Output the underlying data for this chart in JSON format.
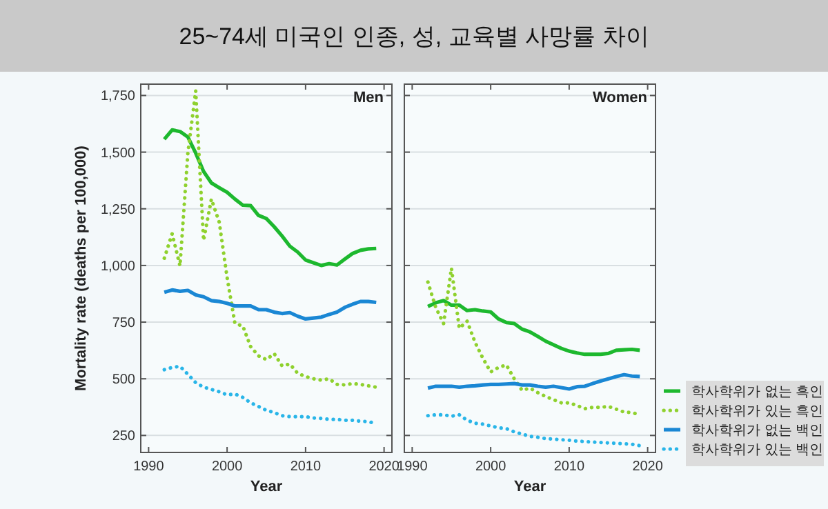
{
  "chart_data": [
    {
      "type": "line",
      "title": "25~74세 미국인 인종, 성, 교육별 사망률 차이",
      "subtitle": "Men",
      "xlabel": "Year",
      "ylabel": "Mortality rate (deaths per 100,000)",
      "xlim": [
        1989,
        2021
      ],
      "ylim": [
        175,
        1800
      ],
      "xticks": [
        1990,
        2000,
        2010,
        2020
      ],
      "yticks": [
        {
          "value": 250,
          "label": "250"
        },
        {
          "value": 500,
          "label": "500"
        },
        {
          "value": 750,
          "label": "750"
        },
        {
          "value": 1000,
          "label": "1,000"
        },
        {
          "value": 1250,
          "label": "1,250"
        },
        {
          "value": 1500,
          "label": "1,500"
        },
        {
          "value": 1750,
          "label": "1,750"
        }
      ],
      "grid": "y",
      "x": [
        1992,
        1993,
        1994,
        1995,
        1996,
        1997,
        1998,
        1999,
        2000,
        2001,
        2002,
        2003,
        2004,
        2005,
        2006,
        2007,
        2008,
        2009,
        2010,
        2011,
        2012,
        2013,
        2014,
        2015,
        2016,
        2017,
        2018,
        2019
      ],
      "series": [
        {
          "color": "#1db82e",
          "line_style": "solid",
          "values": [
            1557,
            1598,
            1591,
            1567,
            1496,
            1415,
            1364,
            1343,
            1323,
            1293,
            1266,
            1264,
            1221,
            1207,
            1171,
            1130,
            1085,
            1059,
            1024,
            1012,
            1000,
            1008,
            1002,
            1028,
            1053,
            1067,
            1073,
            1075
          ]
        },
        {
          "color": "#8fd12e",
          "line_style": "dotted",
          "values": [
            1032,
            1140,
            998,
            1496,
            1770,
            1110,
            1293,
            1191,
            947,
            744,
            733,
            642,
            601,
            585,
            611,
            557,
            565,
            524,
            510,
            500,
            494,
            500,
            475,
            473,
            479,
            475,
            469,
            463
          ]
        },
        {
          "color": "#1a87d4",
          "line_style": "solid",
          "values": [
            882,
            892,
            886,
            890,
            870,
            862,
            845,
            841,
            833,
            821,
            821,
            821,
            805,
            805,
            794,
            788,
            792,
            776,
            764,
            768,
            772,
            784,
            794,
            815,
            829,
            841,
            841,
            837
          ]
        },
        {
          "color": "#29b5e8",
          "line_style": "dotted",
          "values": [
            540,
            550,
            555,
            520,
            483,
            463,
            453,
            443,
            429,
            433,
            418,
            394,
            378,
            361,
            351,
            337,
            333,
            333,
            333,
            327,
            325,
            321,
            321,
            317,
            317,
            313,
            311,
            302
          ]
        }
      ]
    },
    {
      "type": "line",
      "subtitle": "Women",
      "xlabel": "Year",
      "xlim": [
        1989,
        2021
      ],
      "ylim": [
        175,
        1800
      ],
      "xticks": [
        1990,
        2000,
        2010,
        2020
      ],
      "yticks": [
        250,
        500,
        750,
        1000,
        1250,
        1500,
        1750
      ],
      "grid": "y",
      "tick_labels": "x",
      "legend": "right",
      "x": [
        1992,
        1993,
        1994,
        1995,
        1996,
        1997,
        1998,
        1999,
        2000,
        2001,
        2002,
        2003,
        2004,
        2005,
        2006,
        2007,
        2008,
        2009,
        2010,
        2011,
        2012,
        2013,
        2014,
        2015,
        2016,
        2017,
        2018,
        2019
      ],
      "series": [
        {
          "name": "학사학위가 없는 흑인",
          "color": "#1db82e",
          "line_style": "solid",
          "values": [
            819,
            835,
            845,
            825,
            825,
            801,
            805,
            799,
            795,
            764,
            748,
            744,
            719,
            707,
            687,
            666,
            650,
            634,
            622,
            614,
            608,
            608,
            608,
            612,
            626,
            628,
            630,
            626
          ]
        },
        {
          "name": "학사학위가 있는 흑인",
          "color": "#8fd12e",
          "line_style": "dotted",
          "values": [
            927,
            815,
            744,
            988,
            723,
            754,
            662,
            591,
            530,
            550,
            561,
            500,
            449,
            459,
            439,
            422,
            408,
            394,
            394,
            382,
            368,
            374,
            374,
            378,
            366,
            353,
            351,
            341
          ]
        },
        {
          "name": "학사학위가 없는 백인",
          "color": "#1a87d4",
          "line_style": "solid",
          "values": [
            459,
            467,
            467,
            467,
            463,
            467,
            469,
            473,
            475,
            475,
            477,
            479,
            473,
            473,
            467,
            463,
            467,
            461,
            455,
            465,
            467,
            479,
            490,
            500,
            510,
            518,
            512,
            510
          ]
        },
        {
          "name": "학사학위가 있는 백인",
          "color": "#29b5e8",
          "line_style": "dotted",
          "values": [
            337,
            341,
            341,
            335,
            341,
            317,
            304,
            300,
            292,
            284,
            280,
            266,
            256,
            246,
            242,
            236,
            234,
            231,
            229,
            225,
            223,
            221,
            219,
            217,
            215,
            213,
            211,
            205
          ]
        }
      ]
    }
  ]
}
